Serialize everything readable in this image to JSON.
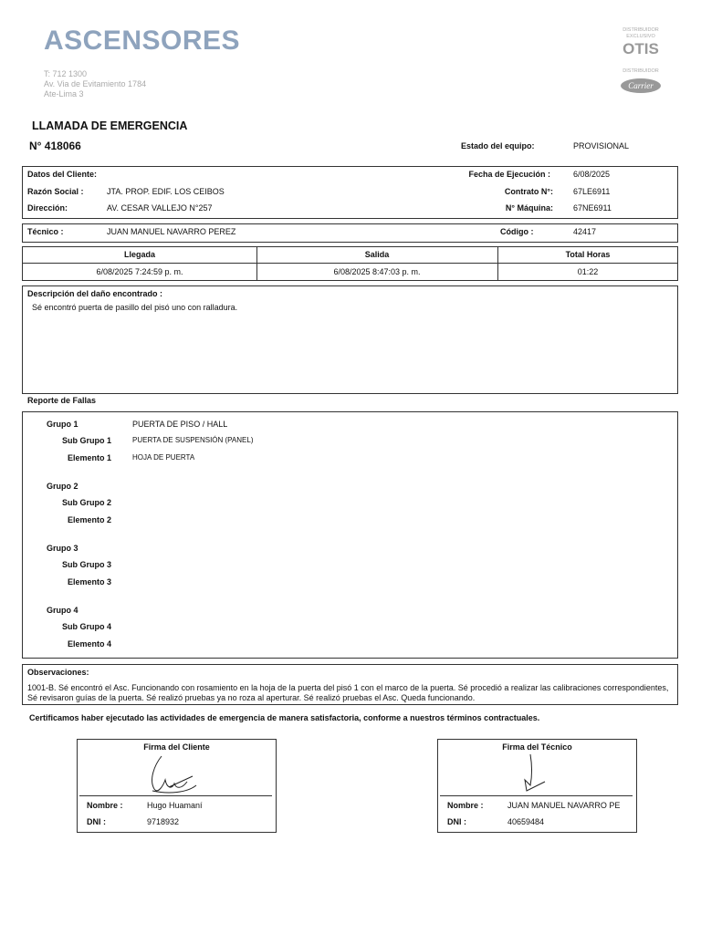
{
  "header": {
    "brand": "ASCENSORES",
    "phone": "T: 712 1300",
    "address": "Av. Via de Evitamiento 1784",
    "city": "Ate-Lima 3",
    "otis_caption_1": "DISTRIBUIDOR",
    "otis_caption_2": "EXCLUSIVO",
    "otis": "OTIS",
    "carrier_caption": "DISTRIBUIDOR",
    "carrier": "Carrier"
  },
  "doc": {
    "title": "LLAMADA DE EMERGENCIA",
    "number": "N°  418066",
    "estado_label": "Estado del equipo:",
    "estado_value": "PROVISIONAL"
  },
  "client": {
    "datos_label": "Datos del Cliente:",
    "razon_label": "Razón Social :",
    "razon_value": "JTA. PROP. EDIF. LOS CEIBOS",
    "direccion_label": "Dirección:",
    "direccion_value": "AV. CESAR VALLEJO N°257",
    "fecha_label": "Fecha de Ejecución :",
    "fecha_value": "6/08/2025",
    "contrato_label": "Contrato N°:",
    "contrato_value": "67LE6911",
    "maquina_label": "N° Máquina:",
    "maquina_value": "67NE6911"
  },
  "tecnico": {
    "label": "Técnico :",
    "value": "JUAN MANUEL NAVARRO PEREZ",
    "codigo_label": "Código :",
    "codigo_value": "42417"
  },
  "times": {
    "headers": [
      "Llegada",
      "Salida",
      "Total Horas"
    ],
    "values": [
      "6/08/2025 7:24:59 p. m.",
      "6/08/2025 8:47:03 p. m.",
      "01:22"
    ]
  },
  "descripcion": {
    "label": "Descripción del daño encontrado :",
    "text": "Sé encontró puerta de pasillo del pisó uno con  ralladura."
  },
  "fallas": {
    "title": "Reporte de Fallas",
    "groups": [
      {
        "g": "Grupo 1",
        "gv": "PUERTA DE PISO / HALL",
        "s": "Sub Grupo 1",
        "sv": "PUERTA DE SUSPENSIÓN (PANEL)",
        "e": "Elemento 1",
        "ev": "HOJA DE PUERTA"
      },
      {
        "g": "Grupo 2",
        "gv": "",
        "s": "Sub Grupo 2",
        "sv": "",
        "e": "Elemento 2",
        "ev": ""
      },
      {
        "g": "Grupo 3",
        "gv": "",
        "s": "Sub Grupo 3",
        "sv": "",
        "e": "Elemento 3",
        "ev": ""
      },
      {
        "g": "Grupo 4",
        "gv": "",
        "s": "Sub Grupo 4",
        "sv": "",
        "e": "Elemento 4",
        "ev": ""
      }
    ]
  },
  "observaciones": {
    "label": "Observaciones:",
    "text": "1001-B. Sé encontró el Asc. Funcionando con rosamiento en la hoja de la puerta del pisó 1 con el marco de la puerta. Sé procedió a realizar las calibraciones correspondientes, Sé revisaron guías de la puerta. Sé realizó pruebas ya no roza al aperturar. Sé realizó pruebas el Asc. Queda funcionando."
  },
  "certificacion": "Certificamos haber ejecutado las actividades de emergencia de manera satisfactoria, conforme a nuestros términos contractuales.",
  "firmas": [
    {
      "title": "Firma del Cliente",
      "nombre_label": "Nombre :",
      "nombre": "Hugo Huamaní",
      "dni_label": "DNI :",
      "dni": "9718932"
    },
    {
      "title": "Firma del Técnico",
      "nombre_label": "Nombre :",
      "nombre": "JUAN MANUEL NAVARRO PE",
      "dni_label": "DNI :",
      "dni": "40659484"
    }
  ]
}
